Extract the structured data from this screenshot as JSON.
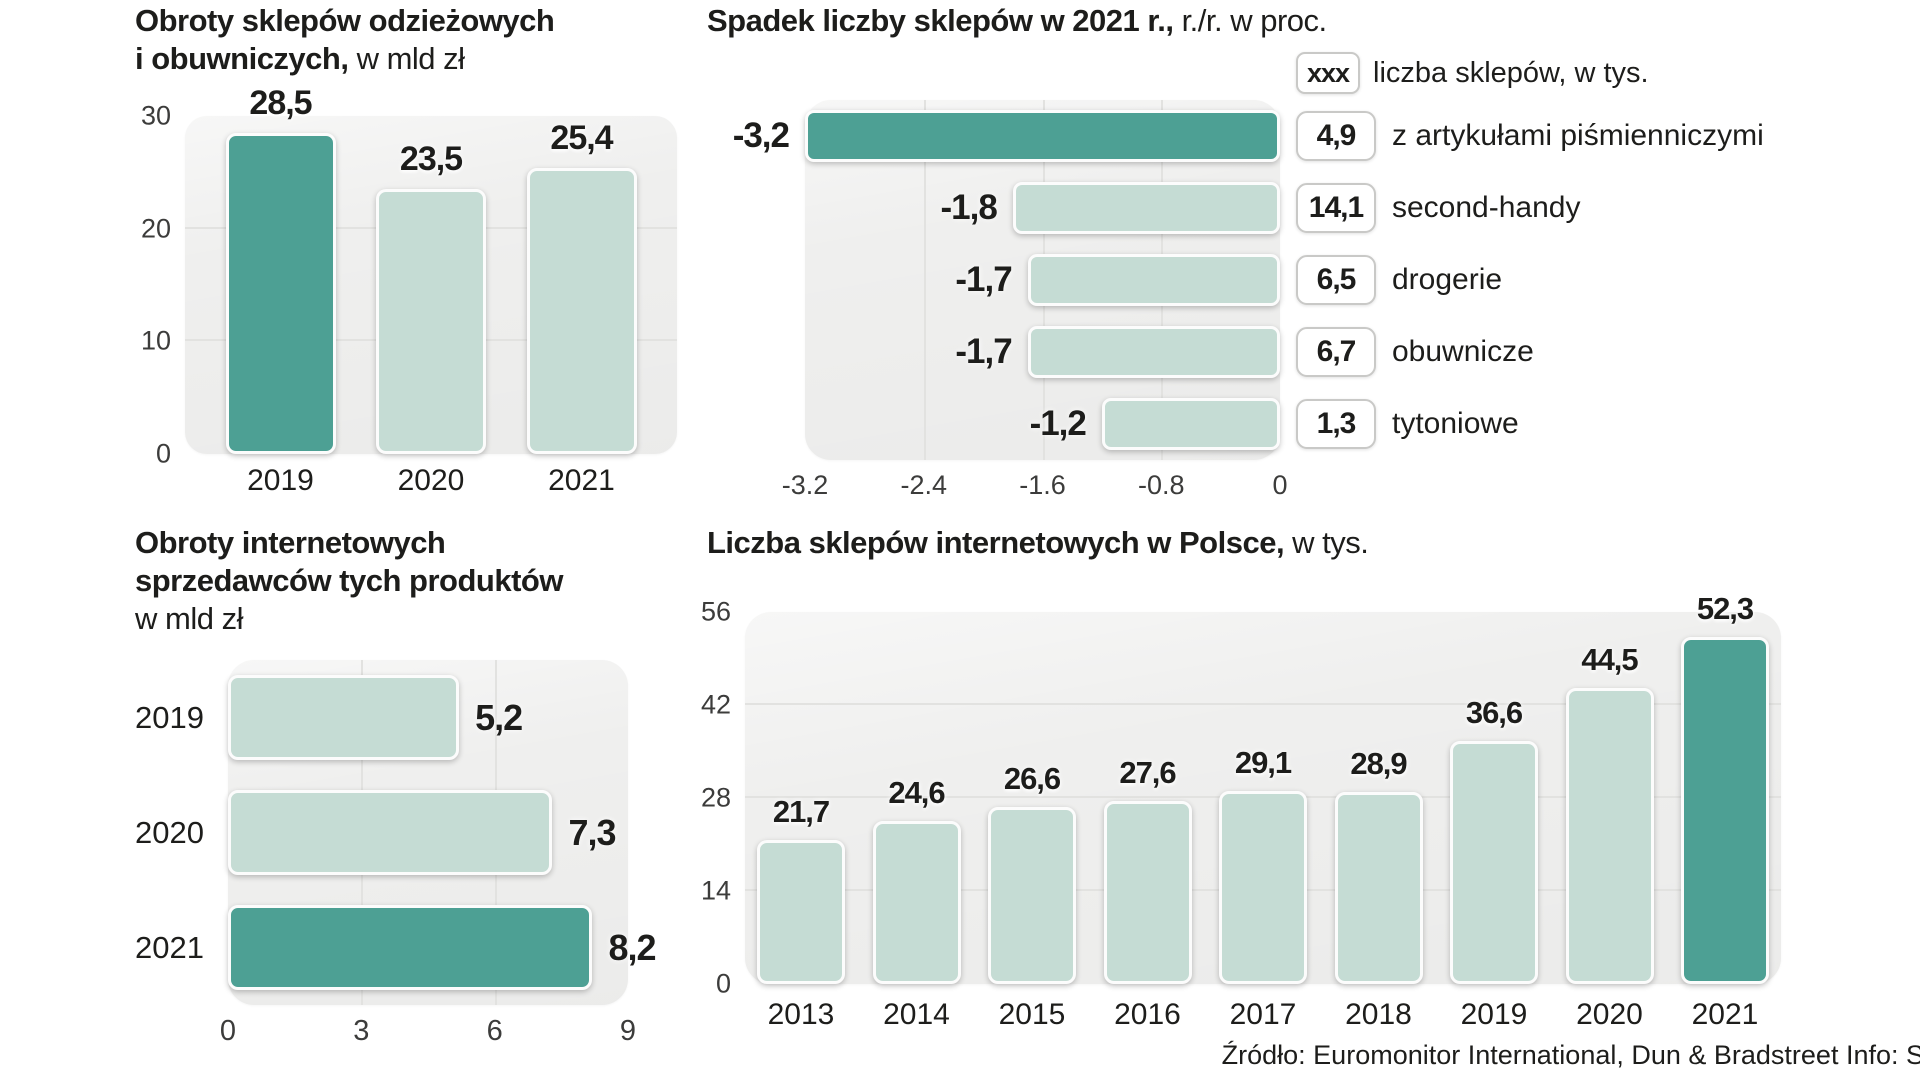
{
  "page": {
    "source_note": "Źródło: Euromonitor International, Dun & Bradstreet  Info: S"
  },
  "colors": {
    "highlight": "#4da094",
    "base": "#c5dcd4",
    "plot_bg": "#efefee",
    "text": "#1d1d1b"
  },
  "chart_data": [
    {
      "id": "obroty-sklepow-odziezowych",
      "type": "bar",
      "title_segments": [
        {
          "text": "Obroty sklepów odzieżowych",
          "bold": true,
          "break_after": true
        },
        {
          "text": "i obuwniczych,",
          "bold": true
        },
        {
          "text": " w mld zł",
          "bold": false
        }
      ],
      "categories": [
        "2019",
        "2020",
        "2021"
      ],
      "values": [
        28.5,
        23.5,
        25.4
      ],
      "value_labels": [
        "28,5",
        "23,5",
        "25,4"
      ],
      "highlight_index": 0,
      "ylim": [
        0,
        30
      ],
      "yticks": [
        0,
        10,
        20,
        30
      ]
    },
    {
      "id": "spadek-liczby-sklepow-2021",
      "type": "hbar_negative",
      "title_segments": [
        {
          "text": "Spadek liczby sklepów w 2021 r.,",
          "bold": true
        },
        {
          "text": " r./r. w proc.",
          "bold": false
        }
      ],
      "legend": {
        "badge": "xxx",
        "label": "liczba sklepów, w tys."
      },
      "rows": [
        {
          "category": "z artykułami piśmienniczymi",
          "value": -3.2,
          "value_label": "-3,2",
          "shops_thousands": "4,9",
          "highlight": true
        },
        {
          "category": "second-handy",
          "value": -1.8,
          "value_label": "-1,8",
          "shops_thousands": "14,1",
          "highlight": false
        },
        {
          "category": "drogerie",
          "value": -1.7,
          "value_label": "-1,7",
          "shops_thousands": "6,5",
          "highlight": false
        },
        {
          "category": "obuwnicze",
          "value": -1.7,
          "value_label": "-1,7",
          "shops_thousands": "6,7",
          "highlight": false
        },
        {
          "category": "tytoniowe",
          "value": -1.2,
          "value_label": "-1,2",
          "shops_thousands": "1,3",
          "highlight": false
        }
      ],
      "xlim": [
        -3.2,
        0
      ],
      "xticks": [
        "-3.2",
        "-2.4",
        "-1.6",
        "-0.8",
        "0"
      ]
    },
    {
      "id": "obroty-internetowych-sprzedawcow",
      "type": "hbar",
      "title_segments": [
        {
          "text": "Obroty internetowych",
          "bold": true,
          "break_after": true
        },
        {
          "text": "sprzedawców tych produktów",
          "bold": true,
          "break_after": true
        },
        {
          "text": "w mld zł",
          "bold": false
        }
      ],
      "rows": [
        {
          "category": "2019",
          "value": 5.2,
          "value_label": "5,2",
          "highlight": false
        },
        {
          "category": "2020",
          "value": 7.3,
          "value_label": "7,3",
          "highlight": false
        },
        {
          "category": "2021",
          "value": 8.2,
          "value_label": "8,2",
          "highlight": true
        }
      ],
      "xlim": [
        0,
        9
      ],
      "xticks": [
        "0",
        "3",
        "6",
        "9"
      ]
    },
    {
      "id": "liczba-sklepow-internetowych",
      "type": "bar",
      "title_segments": [
        {
          "text": "Liczba sklepów internetowych w Polsce,",
          "bold": true
        },
        {
          "text": " w tys.",
          "bold": false
        }
      ],
      "categories": [
        "2013",
        "2014",
        "2015",
        "2016",
        "2017",
        "2018",
        "2019",
        "2020",
        "2021"
      ],
      "values": [
        21.7,
        24.6,
        26.6,
        27.6,
        29.1,
        28.9,
        36.6,
        44.5,
        52.3
      ],
      "value_labels": [
        "21,7",
        "24,6",
        "26,6",
        "27,6",
        "29,1",
        "28,9",
        "36,6",
        "44,5",
        "52,3"
      ],
      "highlight_index": 8,
      "ylim": [
        0,
        56
      ],
      "yticks": [
        0,
        14,
        28,
        42,
        56
      ]
    }
  ]
}
